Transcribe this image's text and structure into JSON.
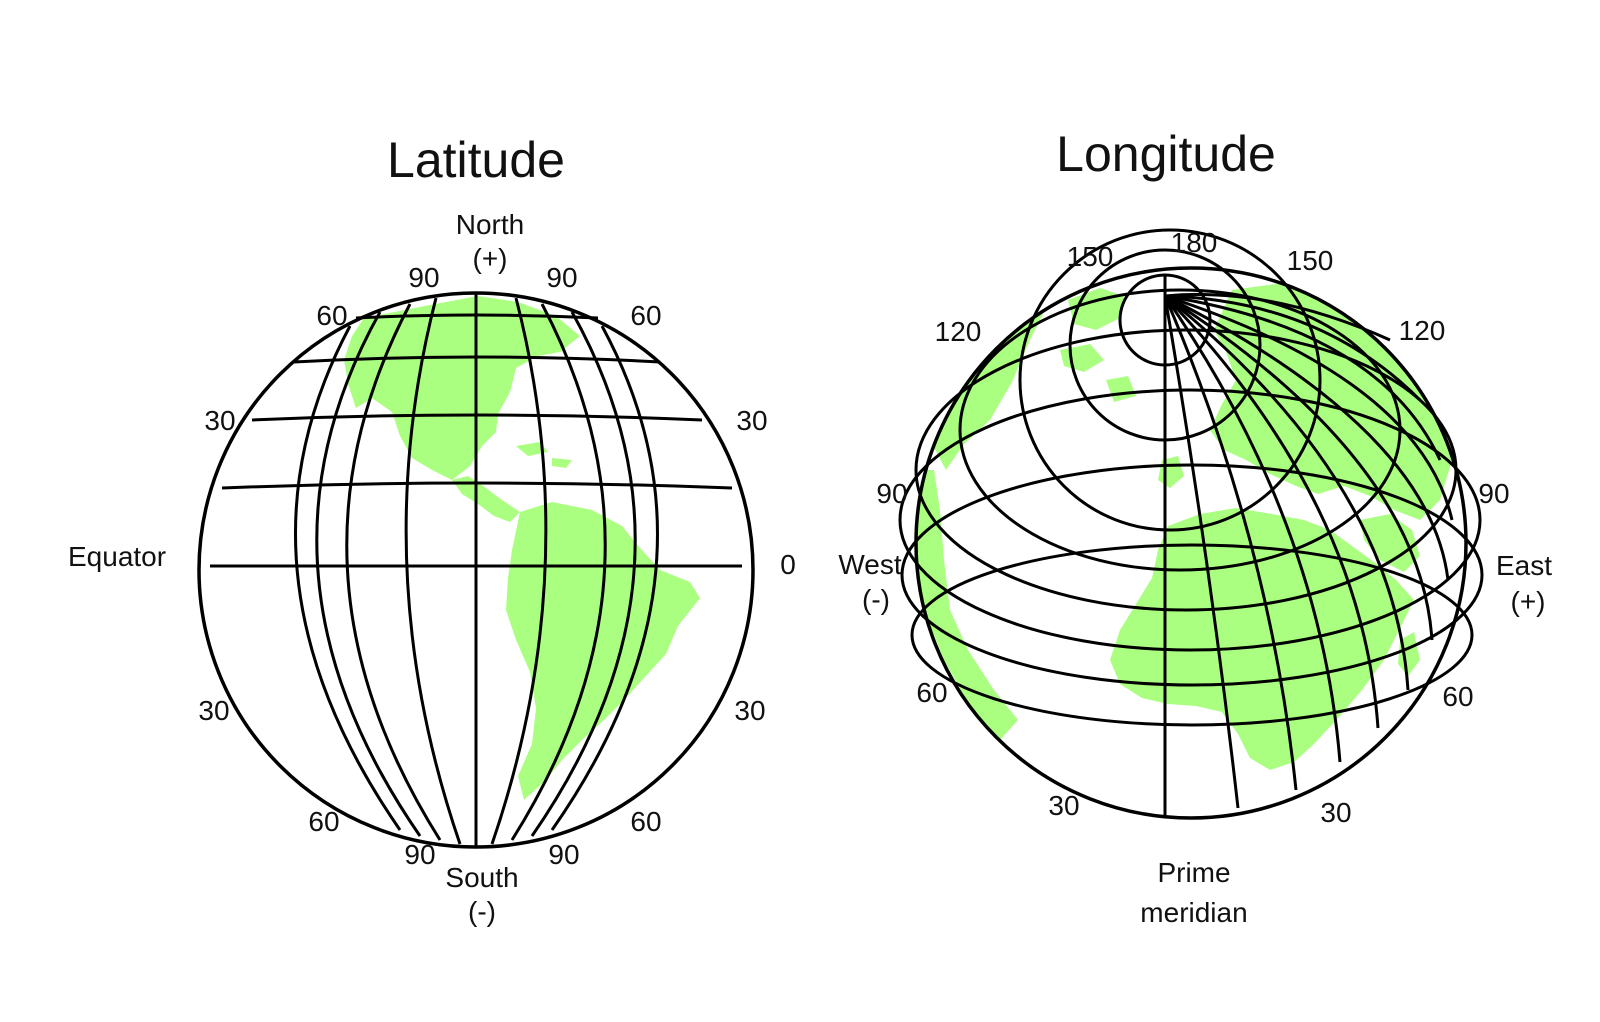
{
  "colors": {
    "land": "#aaff80",
    "grid": "#000000",
    "text": "#111111",
    "background": "#ffffff"
  },
  "latitude_globe": {
    "title": "Latitude",
    "north_label": "North",
    "north_sign": "(+)",
    "south_label": "South",
    "south_sign": "(-)",
    "equator_label": "Equator",
    "equator_value": "0",
    "top_left_90": "90",
    "top_right_90": "90",
    "upper_left_60": "60",
    "upper_right_60": "60",
    "upper_left_30": "30",
    "upper_right_30": "30",
    "lower_left_30": "30",
    "lower_right_30": "30",
    "lower_left_60": "60",
    "lower_right_60": "60",
    "bottom_left_90": "90",
    "bottom_right_90": "90"
  },
  "longitude_globe": {
    "title": "Longitude",
    "top_180": "180",
    "top_left_150": "150",
    "top_right_150": "150",
    "left_120": "120",
    "right_120": "120",
    "left_90": "90",
    "right_90": "90",
    "west_label": "West",
    "west_sign": "(-)",
    "east_label": "East",
    "east_sign": "(+)",
    "left_60": "60",
    "right_60": "60",
    "bottom_left_30": "30",
    "bottom_right_30": "30",
    "prime_meridian_line1": "Prime",
    "prime_meridian_line2": "meridian"
  }
}
